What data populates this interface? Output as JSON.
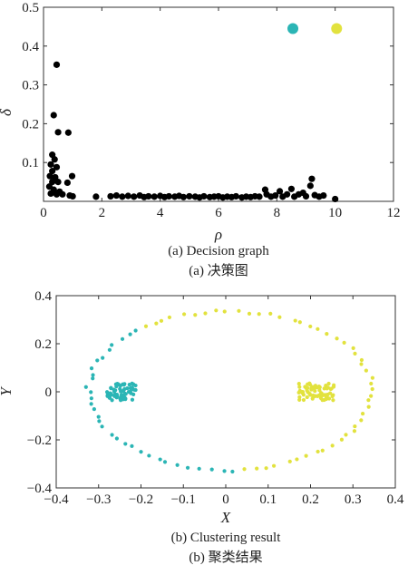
{
  "chart_data": [
    {
      "id": "a",
      "type": "scatter",
      "xlabel": "ρ",
      "ylabel": "δ",
      "xlim": [
        0,
        12
      ],
      "ylim": [
        0,
        0.5
      ],
      "xticks": [
        "0",
        "2",
        "4",
        "6",
        "8",
        "10",
        "12"
      ],
      "yticks": [
        "0.1",
        "0.2",
        "0.3",
        "0.4",
        "0.5"
      ],
      "caption": "(a) Decision graph",
      "caption_cn": "(a) 决策图",
      "series": [
        {
          "color": "#000000",
          "points": [
            [
              0.45,
              0.352
            ],
            [
              0.35,
              0.222
            ],
            [
              0.5,
              0.178
            ],
            [
              0.85,
              0.177
            ],
            [
              0.3,
              0.12
            ],
            [
              0.38,
              0.108
            ],
            [
              0.25,
              0.095
            ],
            [
              0.45,
              0.088
            ],
            [
              0.3,
              0.078
            ],
            [
              0.22,
              0.065
            ],
            [
              0.4,
              0.062
            ],
            [
              0.98,
              0.065
            ],
            [
              0.3,
              0.05
            ],
            [
              0.5,
              0.05
            ],
            [
              0.82,
              0.048
            ],
            [
              0.2,
              0.038
            ],
            [
              0.35,
              0.03
            ],
            [
              0.55,
              0.025
            ],
            [
              0.25,
              0.02
            ],
            [
              0.45,
              0.018
            ],
            [
              0.65,
              0.018
            ],
            [
              0.9,
              0.015
            ],
            [
              1.0,
              0.013
            ],
            [
              1.8,
              0.012
            ],
            [
              2.3,
              0.013
            ],
            [
              2.5,
              0.015
            ],
            [
              2.7,
              0.012
            ],
            [
              2.9,
              0.014
            ],
            [
              3.1,
              0.012
            ],
            [
              3.3,
              0.015
            ],
            [
              3.45,
              0.011
            ],
            [
              3.6,
              0.013
            ],
            [
              3.8,
              0.012
            ],
            [
              4.0,
              0.014
            ],
            [
              4.15,
              0.011
            ],
            [
              4.3,
              0.013
            ],
            [
              4.5,
              0.012
            ],
            [
              4.65,
              0.014
            ],
            [
              4.8,
              0.011
            ],
            [
              5.0,
              0.013
            ],
            [
              5.2,
              0.012
            ],
            [
              5.35,
              0.01
            ],
            [
              5.5,
              0.013
            ],
            [
              5.7,
              0.011
            ],
            [
              5.85,
              0.012
            ],
            [
              6.0,
              0.013
            ],
            [
              6.15,
              0.01
            ],
            [
              6.3,
              0.012
            ],
            [
              6.45,
              0.011
            ],
            [
              6.6,
              0.013
            ],
            [
              6.8,
              0.01
            ],
            [
              6.95,
              0.012
            ],
            [
              7.1,
              0.011
            ],
            [
              7.25,
              0.013
            ],
            [
              7.4,
              0.012
            ],
            [
              7.6,
              0.03
            ],
            [
              7.65,
              0.018
            ],
            [
              7.8,
              0.012
            ],
            [
              7.95,
              0.015
            ],
            [
              8.1,
              0.026
            ],
            [
              8.2,
              0.012
            ],
            [
              8.35,
              0.018
            ],
            [
              8.5,
              0.032
            ],
            [
              8.6,
              0.012
            ],
            [
              8.75,
              0.018
            ],
            [
              8.9,
              0.022
            ],
            [
              9.0,
              0.013
            ],
            [
              9.2,
              0.058
            ],
            [
              9.15,
              0.04
            ],
            [
              9.3,
              0.016
            ],
            [
              9.45,
              0.012
            ],
            [
              9.6,
              0.015
            ],
            [
              10.0,
              0.006
            ]
          ]
        },
        {
          "color": "#2bb5b5",
          "points": [
            [
              8.55,
              0.445
            ]
          ]
        },
        {
          "color": "#e2e23e",
          "points": [
            [
              10.05,
              0.445
            ]
          ]
        }
      ]
    },
    {
      "id": "b",
      "type": "scatter",
      "xlabel": "X",
      "ylabel": "Y",
      "xlim": [
        -0.4,
        0.4
      ],
      "ylim": [
        -0.4,
        0.4
      ],
      "xticks": [
        "−0.4",
        "−0.3",
        "−0.2",
        "−0.1",
        "0",
        "0.1",
        "0.2",
        "0.3",
        "0.4"
      ],
      "yticks": [
        "−0.4",
        "−0.2",
        "0",
        "0.2",
        "0.4"
      ],
      "caption": "(b) Clustering result",
      "caption_cn": "(b) 聚类结果",
      "series": [
        {
          "color": "#2bb5b5",
          "generated": "ellipse-left",
          "cx": -0.245,
          "cy": 0.0,
          "w": 0.07,
          "h": 0.07
        },
        {
          "color": "#e2e23e",
          "generated": "ellipse-right",
          "cx": 0.215,
          "cy": 0.0,
          "w": 0.085,
          "h": 0.07
        }
      ]
    }
  ]
}
